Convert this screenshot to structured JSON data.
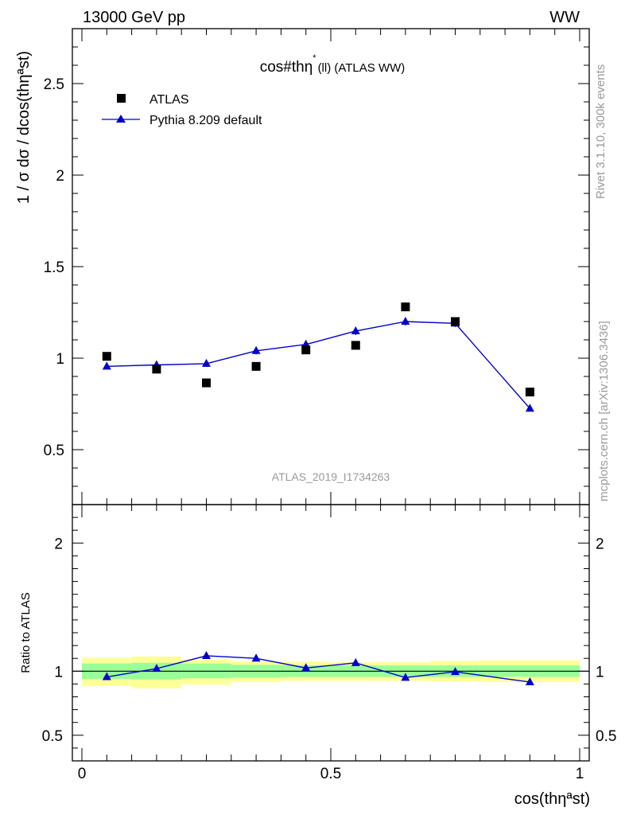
{
  "header": {
    "left": "13000 GeV pp",
    "right": "WW"
  },
  "side_labels": {
    "rivet": "Rivet 3.1.10,  300k events",
    "mcplots": "mcplots.cern.ch [arXiv:1306.3436]"
  },
  "chart_data": [
    {
      "type": "scatter",
      "title": "cos#thη* (ll) (ATLAS WW)",
      "title_main": "cos#thη",
      "title_sup": "*",
      "title_sub": "(ll) (ATLAS WW)",
      "ylabel": "1 / σ  dσ / dcos(thηªst)",
      "watermark": "ATLAS_2019_I1734263",
      "xlim": [
        0,
        1
      ],
      "ylim": [
        0.2,
        2.8
      ],
      "yticks": [
        0.5,
        1,
        1.5,
        2,
        2.5
      ],
      "ytick_labels": [
        "0.5",
        "1",
        "1.5",
        "2",
        "2.5"
      ],
      "legend_position": "top-left",
      "series": [
        {
          "name": "ATLAS",
          "color": "#000000",
          "marker": "square",
          "x": [
            0.05,
            0.15,
            0.25,
            0.35,
            0.45,
            0.55,
            0.65,
            0.75,
            0.9
          ],
          "y": [
            1.01,
            0.94,
            0.865,
            0.955,
            1.045,
            1.07,
            1.28,
            1.2,
            0.815
          ]
        },
        {
          "name": "Pythia 8.209 default",
          "color": "#0000cc",
          "marker": "triangle",
          "x": [
            0.05,
            0.15,
            0.25,
            0.35,
            0.45,
            0.55,
            0.65,
            0.75,
            0.9
          ],
          "y": [
            0.955,
            0.963,
            0.97,
            1.04,
            1.075,
            1.148,
            1.2,
            1.19,
            0.725
          ],
          "yerr": [
            0.015,
            0.018,
            0.018,
            0.02,
            0.02,
            0.022,
            0.022,
            0.02,
            0.012
          ]
        }
      ]
    },
    {
      "type": "line",
      "ylabel": "Ratio to ATLAS",
      "xlabel": "cos(thηªst)",
      "xlim": [
        0,
        1
      ],
      "ylim": [
        0.3,
        2.3
      ],
      "xticks": [
        0,
        0.5,
        1
      ],
      "xtick_labels": [
        "0",
        "0.5",
        "1"
      ],
      "yticks": [
        0.5,
        1,
        2
      ],
      "ytick_labels": [
        "0.5",
        "1",
        "2"
      ],
      "bins": [
        [
          0,
          0.1
        ],
        [
          0.1,
          0.2
        ],
        [
          0.2,
          0.3
        ],
        [
          0.3,
          0.4
        ],
        [
          0.4,
          0.5
        ],
        [
          0.5,
          0.6
        ],
        [
          0.6,
          0.7
        ],
        [
          0.7,
          0.8
        ],
        [
          0.8,
          1.0
        ]
      ],
      "band_outer": [
        [
          0.885,
          1.105
        ],
        [
          0.865,
          1.115
        ],
        [
          0.895,
          1.09
        ],
        [
          0.915,
          1.075
        ],
        [
          0.925,
          1.075
        ],
        [
          0.925,
          1.07
        ],
        [
          0.925,
          1.07
        ],
        [
          0.92,
          1.08
        ],
        [
          0.915,
          1.085
        ]
      ],
      "band_inner": [
        [
          0.94,
          1.06
        ],
        [
          0.935,
          1.065
        ],
        [
          0.945,
          1.06
        ],
        [
          0.95,
          1.05
        ],
        [
          0.955,
          1.045
        ],
        [
          0.955,
          1.045
        ],
        [
          0.955,
          1.045
        ],
        [
          0.955,
          1.045
        ],
        [
          0.955,
          1.045
        ]
      ],
      "band_colors": {
        "outer": "#ffff99",
        "inner": "#99ff99"
      },
      "series": [
        {
          "name": "Pythia 8.209 default",
          "color": "#0000cc",
          "marker": "triangle",
          "x": [
            0.05,
            0.15,
            0.25,
            0.35,
            0.45,
            0.55,
            0.65,
            0.75,
            0.9
          ],
          "y": [
            0.955,
            1.02,
            1.12,
            1.1,
            1.025,
            1.065,
            0.95,
            0.995,
            0.915
          ]
        }
      ]
    }
  ]
}
